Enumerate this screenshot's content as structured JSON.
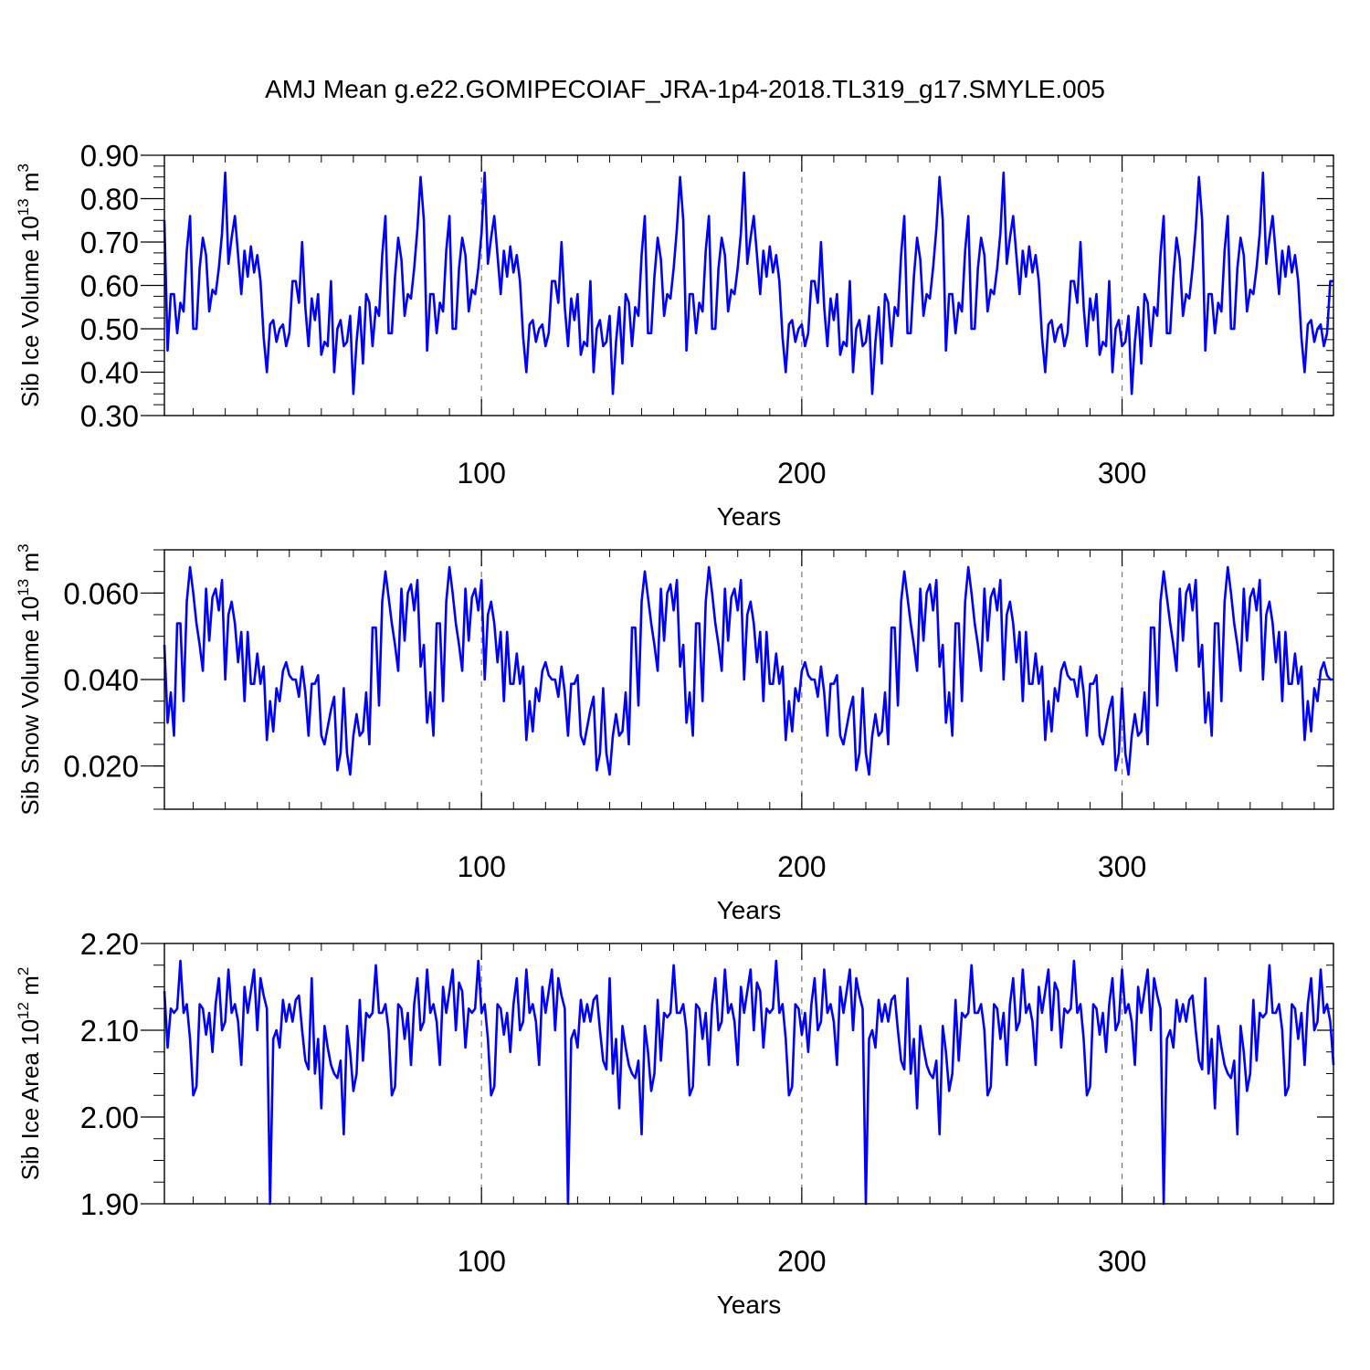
{
  "figure": {
    "title": "AMJ Mean g.e22.GOMIPECOIAF_JRA-1p4-2018.TL319_g17.SMYLE.005",
    "line_color": "#0000ff"
  },
  "chart_data": [
    {
      "type": "line",
      "ylabel": "Sib Ice Volume 10",
      "ylabel_exp": "13",
      "ylabel_unit": " m",
      "ylabel_unit_exp": "3",
      "xlabel": "Years",
      "xlim": [
        1,
        366
      ],
      "ylim": [
        0.3,
        0.9
      ],
      "x_ticks": [
        100,
        200,
        300
      ],
      "x_tick_labels": [
        "100",
        "200",
        "300"
      ],
      "y_ticks": [
        0.3,
        0.4,
        0.5,
        0.6,
        0.7,
        0.8,
        0.9
      ],
      "y_tick_labels": [
        "0.30",
        "0.40",
        "0.50",
        "0.60",
        "0.70",
        "0.80",
        "0.90"
      ],
      "grid": "dashed vertical at major x ticks",
      "cycle": [
        0.75,
        0.45,
        0.58,
        0.58,
        0.49,
        0.56,
        0.54,
        0.68,
        0.76,
        0.5,
        0.5,
        0.64,
        0.71,
        0.67,
        0.54,
        0.59,
        0.58,
        0.64,
        0.72,
        0.86,
        0.65,
        0.71,
        0.76,
        0.67,
        0.58,
        0.68,
        0.62,
        0.69,
        0.63,
        0.67,
        0.61,
        0.48,
        0.4,
        0.51,
        0.52,
        0.47,
        0.5,
        0.51,
        0.46,
        0.49,
        0.61,
        0.61,
        0.56,
        0.7,
        0.55,
        0.46,
        0.57,
        0.52,
        0.58,
        0.44,
        0.47,
        0.46,
        0.61,
        0.4,
        0.5,
        0.52,
        0.46,
        0.47,
        0.53,
        0.35,
        0.47,
        0.55,
        0.42,
        0.58,
        0.56,
        0.46,
        0.55,
        0.53,
        0.67,
        0.76,
        0.49,
        0.49,
        0.62,
        0.71,
        0.66,
        0.53,
        0.58,
        0.57,
        0.64,
        0.73,
        0.85
      ]
    },
    {
      "type": "line",
      "ylabel": "Sib Snow Volume 10",
      "ylabel_exp": "13",
      "ylabel_unit": " m",
      "ylabel_unit_exp": "3",
      "xlabel": "Years",
      "xlim": [
        1,
        366
      ],
      "ylim": [
        0.01,
        0.07
      ],
      "x_ticks": [
        100,
        200,
        300
      ],
      "x_tick_labels": [
        "100",
        "200",
        "300"
      ],
      "y_ticks": [
        0.02,
        0.04,
        0.06
      ],
      "y_tick_labels": [
        "0.020",
        "0.040",
        "0.060"
      ],
      "grid": "dashed vertical at major x ticks",
      "cycle": [
        0.048,
        0.03,
        0.037,
        0.027,
        0.053,
        0.053,
        0.035,
        0.058,
        0.066,
        0.06,
        0.053,
        0.048,
        0.042,
        0.061,
        0.049,
        0.059,
        0.061,
        0.056,
        0.063,
        0.04,
        0.055,
        0.058,
        0.053,
        0.044,
        0.051,
        0.035,
        0.051,
        0.039,
        0.039,
        0.046,
        0.039,
        0.043,
        0.026,
        0.035,
        0.028,
        0.038,
        0.035,
        0.042,
        0.044,
        0.041,
        0.04,
        0.04,
        0.036,
        0.043,
        0.037,
        0.027,
        0.039,
        0.039,
        0.041,
        0.027,
        0.025,
        0.029,
        0.033,
        0.036,
        0.019,
        0.023,
        0.038,
        0.023,
        0.018,
        0.027,
        0.032,
        0.027,
        0.028,
        0.037,
        0.025,
        0.052,
        0.052,
        0.034,
        0.058,
        0.065,
        0.059,
        0.053,
        0.048,
        0.042,
        0.061,
        0.049,
        0.06,
        0.062,
        0.056,
        0.063,
        0.043
      ]
    },
    {
      "type": "line",
      "ylabel": "Sib Ice Area 10",
      "ylabel_exp": "12",
      "ylabel_unit": " m",
      "ylabel_unit_exp": "2",
      "xlabel": "Years",
      "xlim": [
        1,
        366
      ],
      "ylim": [
        1.9,
        2.2
      ],
      "x_ticks": [
        100,
        200,
        300
      ],
      "x_tick_labels": [
        "100",
        "200",
        "300"
      ],
      "y_ticks": [
        1.9,
        2.0,
        2.1,
        2.2
      ],
      "y_tick_labels": [
        "1.90",
        "2.00",
        "2.10",
        "2.20"
      ],
      "grid": "dashed vertical at major x ticks",
      "cycle": [
        2.145,
        2.08,
        2.125,
        2.12,
        2.125,
        2.18,
        2.12,
        2.13,
        2.09,
        2.025,
        2.035,
        2.13,
        2.125,
        2.095,
        2.12,
        2.075,
        2.13,
        2.16,
        2.1,
        2.11,
        2.17,
        2.12,
        2.13,
        2.11,
        2.06,
        2.15,
        2.12,
        2.145,
        2.17,
        2.1,
        2.16,
        2.14,
        2.125,
        1.9,
        2.09,
        2.1,
        2.08,
        2.135,
        2.11,
        2.13,
        2.11,
        2.135,
        2.14,
        2.1,
        2.065,
        2.055,
        2.16,
        2.05,
        2.09,
        2.01,
        2.105,
        2.08,
        2.06,
        2.05,
        2.045,
        2.065,
        1.98,
        2.105,
        2.075,
        2.03,
        2.05,
        2.135,
        2.065,
        2.12,
        2.115,
        2.12,
        2.175,
        2.12,
        2.12,
        2.13,
        2.1,
        2.025,
        2.035,
        2.13,
        2.125,
        2.09,
        2.12,
        2.06,
        2.13,
        2.16,
        2.1,
        2.11,
        2.17,
        2.12,
        2.13,
        2.11,
        2.06,
        2.15,
        2.12,
        2.145,
        2.17,
        2.1,
        2.155
      ]
    }
  ]
}
